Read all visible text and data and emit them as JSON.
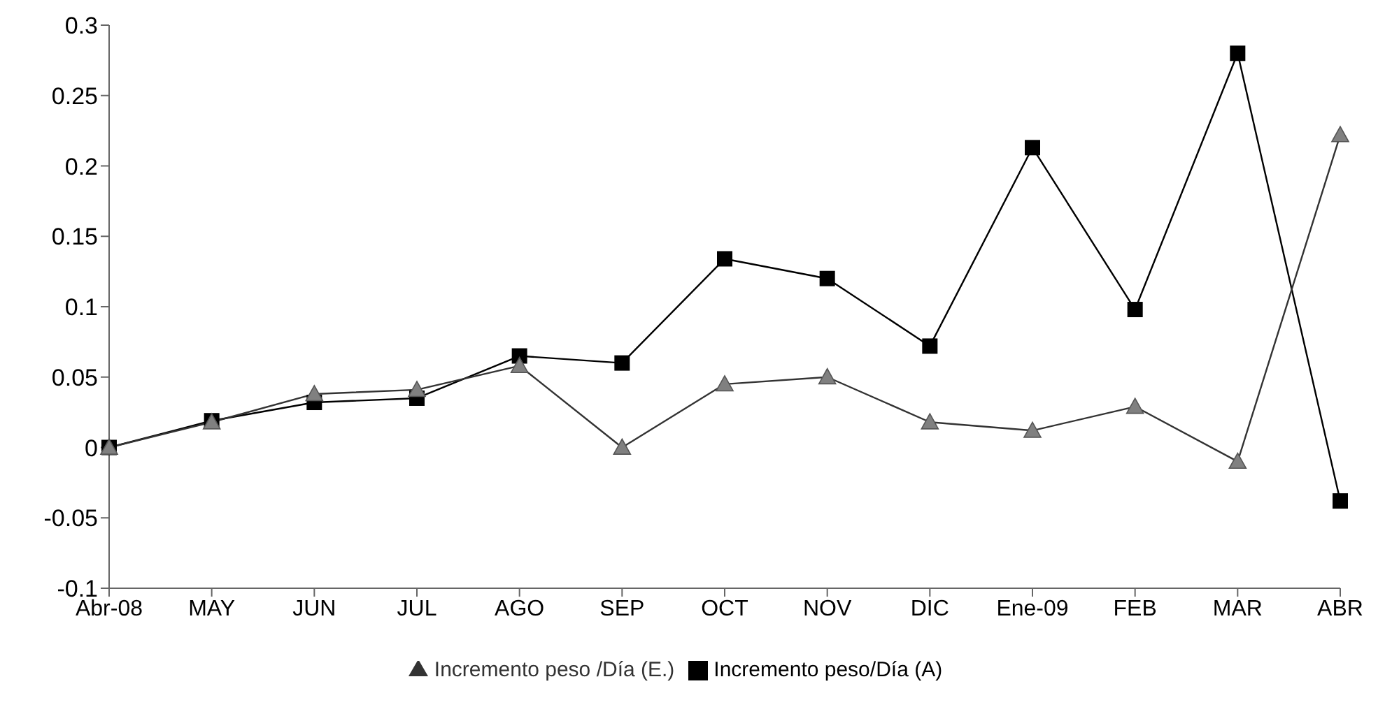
{
  "chart_data": {
    "type": "line",
    "categories": [
      "Abr-08",
      "MAY",
      "JUN",
      "JUL",
      "AGO",
      "SEP",
      "OCT",
      "NOV",
      "DIC",
      "Ene-09",
      "FEB",
      "MAR",
      "ABR"
    ],
    "series": [
      {
        "name": "Incremento peso /Día (E.)",
        "color": "#808080",
        "marker": "triangle",
        "values": [
          0,
          0.018,
          0.038,
          0.041,
          0.058,
          0,
          0.045,
          0.05,
          0.018,
          0.012,
          0.029,
          -0.01,
          0.222
        ]
      },
      {
        "name": "Incremento peso/Día (A)",
        "color": "#000000",
        "marker": "square",
        "values": [
          0,
          0.019,
          0.032,
          0.035,
          0.065,
          0.06,
          0.134,
          0.12,
          0.072,
          0.213,
          0.098,
          0.28,
          -0.038
        ]
      }
    ],
    "ylim": [
      -0.1,
      0.3
    ],
    "yticks": [
      -0.1,
      -0.05,
      0,
      0.05,
      0.1,
      0.15,
      0.2,
      0.25,
      0.3
    ],
    "grid": false,
    "legend": "bottom"
  }
}
